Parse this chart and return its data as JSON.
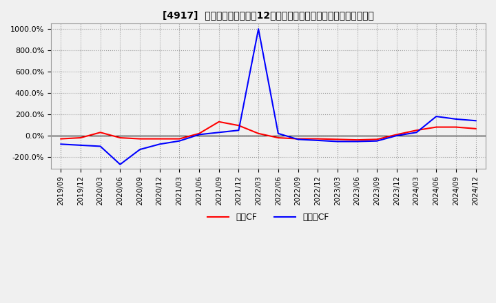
{
  "title": "[4917]  キャッシュフローの12か月移動合計の対前年同期増減率の推移",
  "legend_labels": [
    "営業CF",
    "フリーCF"
  ],
  "line_colors": [
    "#ff0000",
    "#0000ff"
  ],
  "ylim": [
    -310,
    1050
  ],
  "yticks": [
    -200,
    0,
    200,
    400,
    600,
    800,
    1000
  ],
  "background_color": "#f0f0f0",
  "x_labels": [
    "2019/09",
    "2019/12",
    "2020/03",
    "2020/06",
    "2020/09",
    "2020/12",
    "2021/03",
    "2021/06",
    "2021/09",
    "2021/12",
    "2022/03",
    "2022/06",
    "2022/09",
    "2022/12",
    "2023/03",
    "2023/06",
    "2023/09",
    "2023/12",
    "2024/03",
    "2024/06",
    "2024/09",
    "2024/12"
  ],
  "operating_cf": [
    -30,
    -20,
    30,
    -20,
    -30,
    -30,
    -30,
    20,
    130,
    95,
    20,
    -20,
    -30,
    -30,
    -35,
    -40,
    -35,
    10,
    50,
    80,
    80,
    65
  ],
  "free_cf": [
    -80,
    -90,
    -100,
    -270,
    -130,
    -80,
    -50,
    10,
    30,
    50,
    1000,
    20,
    -35,
    -45,
    -55,
    -55,
    -50,
    0,
    30,
    180,
    155,
    140
  ]
}
